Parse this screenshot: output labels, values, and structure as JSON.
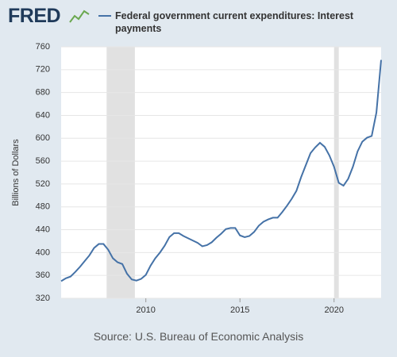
{
  "logo": "FRED",
  "chart_data": {
    "type": "line",
    "title": "Federal government current expenditures: Interest payments",
    "y_label": "Billions of Dollars",
    "source": "Source: U.S. Bureau of Economic Analysis",
    "xlim": [
      2005.5,
      2022.5
    ],
    "xticks": [
      2010,
      2015,
      2020
    ],
    "ylim": [
      320,
      760
    ],
    "yticks": [
      320,
      360,
      400,
      440,
      480,
      520,
      560,
      600,
      640,
      680,
      720,
      760
    ],
    "grid": true,
    "recessions": [
      [
        2007.917,
        2009.417
      ],
      [
        2020.0,
        2020.25
      ]
    ],
    "x": [
      2005.5,
      2005.75,
      2006.0,
      2006.25,
      2006.5,
      2006.75,
      2007.0,
      2007.25,
      2007.5,
      2007.75,
      2008.0,
      2008.25,
      2008.5,
      2008.75,
      2009.0,
      2009.25,
      2009.5,
      2009.75,
      2010.0,
      2010.25,
      2010.5,
      2010.75,
      2011.0,
      2011.25,
      2011.5,
      2011.75,
      2012.0,
      2012.25,
      2012.5,
      2012.75,
      2013.0,
      2013.25,
      2013.5,
      2013.75,
      2014.0,
      2014.25,
      2014.5,
      2014.75,
      2015.0,
      2015.25,
      2015.5,
      2015.75,
      2016.0,
      2016.25,
      2016.5,
      2016.75,
      2017.0,
      2017.25,
      2017.5,
      2017.75,
      2018.0,
      2018.25,
      2018.5,
      2018.75,
      2019.0,
      2019.25,
      2019.5,
      2019.75,
      2020.0,
      2020.25,
      2020.5,
      2020.75,
      2021.0,
      2021.25,
      2021.5,
      2021.75,
      2022.0,
      2022.25,
      2022.5
    ],
    "series": [
      {
        "name": "Federal government current expenditures: Interest payments",
        "color": "#4572a7",
        "values": [
          350,
          355,
          358,
          366,
          375,
          385,
          395,
          408,
          415,
          415,
          405,
          390,
          383,
          380,
          363,
          353,
          351,
          354,
          361,
          377,
          390,
          400,
          412,
          427,
          434,
          434,
          429,
          425,
          421,
          417,
          411,
          413,
          418,
          426,
          433,
          441,
          443,
          443,
          430,
          427,
          429,
          436,
          447,
          454,
          458,
          461,
          461,
          471,
          482,
          494,
          508,
          532,
          553,
          574,
          584,
          592,
          585,
          570,
          550,
          522,
          517,
          529,
          550,
          577,
          594,
          601,
          604,
          645,
          737
        ]
      }
    ]
  }
}
